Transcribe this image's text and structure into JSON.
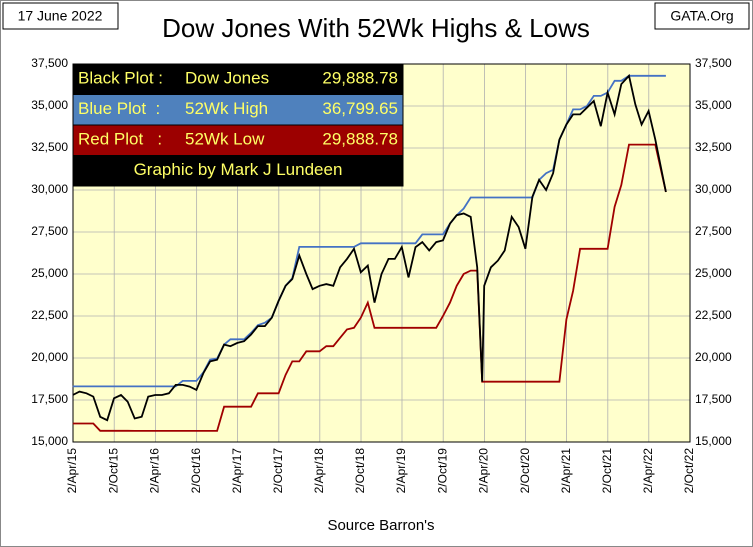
{
  "chart_data": {
    "type": "line",
    "title": "Dow Jones With 52Wk Highs & Lows",
    "date_note": "17 June 2022",
    "source_note": "GATA.Org",
    "xlabel": "Source Barron's",
    "credit": "Graphic by Mark J Lundeen",
    "x": [
      "2015-04-01",
      "2015-05-01",
      "2015-06-01",
      "2015-07-01",
      "2015-08-01",
      "2015-09-01",
      "2015-10-01",
      "2015-11-01",
      "2015-12-01",
      "2016-01-01",
      "2016-02-01",
      "2016-03-01",
      "2016-04-01",
      "2016-05-01",
      "2016-06-01",
      "2016-07-01",
      "2016-08-01",
      "2016-09-01",
      "2016-10-01",
      "2016-11-01",
      "2016-12-01",
      "2017-01-01",
      "2017-02-01",
      "2017-03-01",
      "2017-04-01",
      "2017-05-01",
      "2017-06-01",
      "2017-07-01",
      "2017-08-01",
      "2017-09-01",
      "2017-10-01",
      "2017-11-01",
      "2017-12-01",
      "2018-01-01",
      "2018-02-01",
      "2018-03-01",
      "2018-04-01",
      "2018-05-01",
      "2018-06-01",
      "2018-07-01",
      "2018-08-01",
      "2018-09-01",
      "2018-10-01",
      "2018-11-01",
      "2018-12-01",
      "2019-01-01",
      "2019-02-01",
      "2019-03-01",
      "2019-04-01",
      "2019-05-01",
      "2019-06-01",
      "2019-07-01",
      "2019-08-01",
      "2019-09-01",
      "2019-10-01",
      "2019-11-01",
      "2019-12-01",
      "2020-01-01",
      "2020-02-01",
      "2020-03-01",
      "2020-03-23",
      "2020-04-01",
      "2020-05-01",
      "2020-06-01",
      "2020-07-01",
      "2020-08-01",
      "2020-09-01",
      "2020-10-01",
      "2020-11-01",
      "2020-12-01",
      "2021-01-01",
      "2021-02-01",
      "2021-03-01",
      "2021-04-01",
      "2021-05-01",
      "2021-06-01",
      "2021-07-01",
      "2021-08-01",
      "2021-09-01",
      "2021-10-01",
      "2021-11-01",
      "2021-12-01",
      "2022-01-04",
      "2022-02-01",
      "2022-03-01",
      "2022-04-01",
      "2022-05-01",
      "2022-06-17"
    ],
    "series": [
      {
        "name": "Dow Jones",
        "legend_prefix": "Black Plot :",
        "last_label": "29,888.78",
        "color": "#000000",
        "values": [
          17800,
          18000,
          17900,
          17700,
          16500,
          16300,
          17600,
          17800,
          17400,
          16400,
          16500,
          17700,
          17800,
          17800,
          17900,
          18400,
          18400,
          18300,
          18100,
          19100,
          19800,
          19900,
          20800,
          20700,
          20900,
          21000,
          21400,
          21900,
          21900,
          22400,
          23400,
          24300,
          24700,
          26100,
          25000,
          24100,
          24300,
          24400,
          24300,
          25400,
          25900,
          26500,
          25100,
          25500,
          23300,
          25000,
          25900,
          25900,
          26600,
          24800,
          26600,
          26900,
          26400,
          26900,
          27000,
          28000,
          28500,
          28600,
          28400,
          25400,
          18591,
          24300,
          25400,
          25800,
          26400,
          28400,
          27800,
          26500,
          29600,
          30600,
          30000,
          31000,
          33000,
          33900,
          34500,
          34500,
          34900,
          35300,
          33800,
          35800,
          34500,
          36300,
          36799.65,
          35100,
          33900,
          34700,
          33000,
          29888.78
        ]
      },
      {
        "name": "52Wk High",
        "legend_prefix": "Blue Plot  :",
        "last_label": "36,799.65",
        "color": "#4472c4",
        "values": [
          18312,
          18312,
          18312,
          18312,
          18312,
          18312,
          18312,
          18312,
          18312,
          18312,
          18312,
          18312,
          18312,
          18312,
          18312,
          18312,
          18636,
          18636,
          18636,
          19150,
          19900,
          19970,
          20800,
          21115,
          21115,
          21115,
          21500,
          21950,
          22100,
          22400,
          23400,
          24300,
          24750,
          26616,
          26616,
          26616,
          26616,
          26616,
          26616,
          26616,
          26616,
          26616,
          26828,
          26828,
          26828,
          26828,
          26828,
          26828,
          26828,
          26828,
          26828,
          27359,
          27359,
          27359,
          27359,
          28000,
          28500,
          28900,
          29551,
          29551,
          29551,
          29551,
          29551,
          29551,
          29551,
          29551,
          29551,
          29551,
          29551,
          30600,
          31000,
          31200,
          33000,
          33900,
          34800,
          34800,
          35000,
          35600,
          35600,
          35800,
          36500,
          36500,
          36799.65,
          36799.65,
          36799.65,
          36799.65,
          36799.65,
          36799.65
        ]
      },
      {
        "name": "52Wk Low",
        "legend_prefix": "Red Plot   :",
        "last_label": "29,888.78",
        "color": "#a00000",
        "values": [
          16100,
          16100,
          16100,
          16100,
          15666,
          15666,
          15666,
          15666,
          15666,
          15660,
          15660,
          15660,
          15660,
          15660,
          15660,
          15660,
          15660,
          15660,
          15660,
          15660,
          15660,
          15660,
          17100,
          17100,
          17100,
          17100,
          17100,
          17900,
          17900,
          17900,
          17900,
          19000,
          19800,
          19800,
          20400,
          20400,
          20400,
          20700,
          20700,
          21200,
          21700,
          21800,
          22400,
          23300,
          21800,
          21800,
          21800,
          21800,
          21800,
          21800,
          21800,
          21800,
          21800,
          21800,
          22500,
          23300,
          24300,
          25000,
          25200,
          25200,
          18591,
          18591,
          18591,
          18591,
          18591,
          18591,
          18591,
          18591,
          18591,
          18591,
          18591,
          18591,
          18591,
          22300,
          24000,
          26500,
          26500,
          26500,
          26500,
          26500,
          29000,
          30300,
          32700,
          32700,
          32700,
          32700,
          32700,
          29888.78
        ]
      }
    ],
    "xlim": [
      "2015-04-02",
      "2022-10-02"
    ],
    "xticks": [
      {
        "value": "2015-04-02",
        "label": "2/Apr/15"
      },
      {
        "value": "2015-10-02",
        "label": "2/Oct/15"
      },
      {
        "value": "2016-04-02",
        "label": "2/Apr/16"
      },
      {
        "value": "2016-10-02",
        "label": "2/Oct/16"
      },
      {
        "value": "2017-04-02",
        "label": "2/Apr/17"
      },
      {
        "value": "2017-10-02",
        "label": "2/Oct/17"
      },
      {
        "value": "2018-04-02",
        "label": "2/Apr/18"
      },
      {
        "value": "2018-10-02",
        "label": "2/Oct/18"
      },
      {
        "value": "2019-04-02",
        "label": "2/Apr/19"
      },
      {
        "value": "2019-10-02",
        "label": "2/Oct/19"
      },
      {
        "value": "2020-04-02",
        "label": "2/Apr/20"
      },
      {
        "value": "2020-10-02",
        "label": "2/Oct/20"
      },
      {
        "value": "2021-04-02",
        "label": "2/Apr/21"
      },
      {
        "value": "2021-10-02",
        "label": "2/Oct/21"
      },
      {
        "value": "2022-04-02",
        "label": "2/Apr/22"
      },
      {
        "value": "2022-10-02",
        "label": "2/Oct/22"
      }
    ],
    "ylim": [
      15000,
      37500
    ],
    "yticks": [
      {
        "value": 15000,
        "label": "15,000"
      },
      {
        "value": 17500,
        "label": "17,500"
      },
      {
        "value": 20000,
        "label": "20,000"
      },
      {
        "value": 22500,
        "label": "22,500"
      },
      {
        "value": 25000,
        "label": "25,000"
      },
      {
        "value": 27500,
        "label": "27,500"
      },
      {
        "value": 30000,
        "label": "30,000"
      },
      {
        "value": 32500,
        "label": "32,500"
      },
      {
        "value": 35000,
        "label": "35,000"
      },
      {
        "value": 37500,
        "label": "37,500"
      }
    ],
    "grid": true,
    "background": "#ffffcc"
  }
}
